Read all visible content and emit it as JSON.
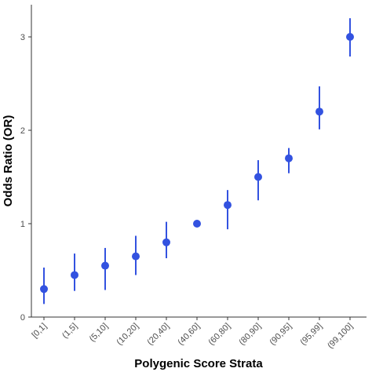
{
  "chart_data": {
    "type": "scatter",
    "title": "",
    "xlabel": "Polygenic Score Strata",
    "ylabel": "Odds Ratio (OR)",
    "categories": [
      "[0,1]",
      "(1,5]",
      "(5,10]",
      "(10,20]",
      "(20,40]",
      "(40,60]",
      "(60,80]",
      "(80,90]",
      "(90,95]",
      "(95,99]",
      "(99,100]"
    ],
    "values": [
      0.3,
      0.45,
      0.55,
      0.65,
      0.8,
      1.0,
      1.2,
      1.5,
      1.7,
      2.2,
      3.0
    ],
    "lower": [
      0.14,
      0.28,
      0.29,
      0.45,
      0.63,
      1.0,
      0.94,
      1.25,
      1.54,
      2.01,
      2.79
    ],
    "upper": [
      0.53,
      0.68,
      0.74,
      0.87,
      1.02,
      1.0,
      1.36,
      1.68,
      1.81,
      2.47,
      3.2
    ],
    "ylim": [
      0,
      3.2
    ],
    "yticks": [
      0,
      1,
      2,
      3
    ],
    "grid": false,
    "legend": "none",
    "point_color": "#3352e0"
  }
}
